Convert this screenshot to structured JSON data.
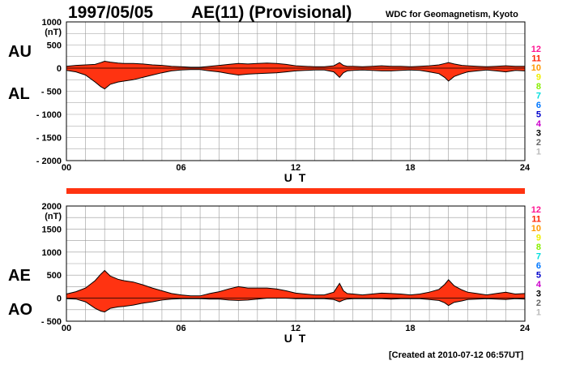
{
  "header": {
    "date": "1997/05/05",
    "title": "AE(11) (Provisional)",
    "org": "WDC for Geomagnetism, Kyoto"
  },
  "footer": {
    "created": "[Created at 2010-07-12 06:57UT]"
  },
  "colors": {
    "fill": "#ff3311",
    "outline": "#000000",
    "grid": "#999999",
    "bar": "#ff3311"
  },
  "station_legend": [
    {
      "label": "12",
      "color": "#ff1493"
    },
    {
      "label": "11",
      "color": "#ff2200"
    },
    {
      "label": "10",
      "color": "#ff9900"
    },
    {
      "label": "9",
      "color": "#eeee00"
    },
    {
      "label": "8",
      "color": "#88ee00"
    },
    {
      "label": "7",
      "color": "#00dddd"
    },
    {
      "label": "6",
      "color": "#0077ff"
    },
    {
      "label": "5",
      "color": "#0000cc"
    },
    {
      "label": "4",
      "color": "#cc00cc"
    },
    {
      "label": "3",
      "color": "#000000"
    },
    {
      "label": "2",
      "color": "#666666"
    },
    {
      "label": "1",
      "color": "#bbbbbb"
    }
  ],
  "chart_data": [
    {
      "type": "area",
      "series_labels": [
        "AU",
        "AL"
      ],
      "ylabel": "(nT)",
      "xlabel": "U T",
      "xlim": [
        0,
        24
      ],
      "ylim": [
        -2000,
        1000
      ],
      "xticks": [
        {
          "v": 0,
          "label": "00"
        },
        {
          "v": 6,
          "label": "06"
        },
        {
          "v": 12,
          "label": "12"
        },
        {
          "v": 18,
          "label": "18"
        },
        {
          "v": 24,
          "label": "24"
        }
      ],
      "yticks": [
        {
          "v": 1000,
          "label": "1000"
        },
        {
          "v": 500,
          "label": "500"
        },
        {
          "v": 0,
          "label": "0"
        },
        {
          "v": -500,
          "label": "- 500"
        },
        {
          "v": -1000,
          "label": "- 1000"
        },
        {
          "v": -1500,
          "label": "- 1500"
        },
        {
          "v": -2000,
          "label": "- 2000"
        }
      ],
      "grid": true,
      "x": [
        0,
        0.5,
        1,
        1.5,
        1.8,
        2,
        2.3,
        2.7,
        3,
        3.5,
        4,
        4.5,
        5,
        5.5,
        6,
        6.5,
        7,
        7.5,
        8,
        8.5,
        9,
        9.5,
        10,
        10.5,
        11,
        11.5,
        12,
        12.5,
        13,
        13.5,
        14,
        14.3,
        14.5,
        14.7,
        15,
        15.5,
        16,
        16.5,
        17,
        17.5,
        18,
        18.5,
        19,
        19.5,
        19.8,
        20,
        20.3,
        20.7,
        21,
        21.5,
        22,
        22.5,
        23,
        23.5,
        24
      ],
      "upper": [
        40,
        60,
        70,
        80,
        120,
        150,
        130,
        110,
        100,
        100,
        90,
        70,
        60,
        40,
        30,
        20,
        20,
        40,
        60,
        80,
        100,
        90,
        100,
        110,
        100,
        80,
        50,
        40,
        30,
        30,
        50,
        120,
        60,
        40,
        40,
        30,
        40,
        50,
        40,
        40,
        30,
        40,
        50,
        70,
        100,
        120,
        90,
        60,
        50,
        40,
        30,
        40,
        50,
        40,
        40
      ],
      "lower": [
        -50,
        -80,
        -150,
        -300,
        -400,
        -450,
        -350,
        -300,
        -280,
        -250,
        -200,
        -150,
        -100,
        -60,
        -40,
        -30,
        -30,
        -60,
        -80,
        -120,
        -150,
        -130,
        -120,
        -110,
        -100,
        -80,
        -60,
        -50,
        -40,
        -40,
        -80,
        -200,
        -100,
        -60,
        -50,
        -40,
        -50,
        -60,
        -60,
        -50,
        -40,
        -50,
        -80,
        -120,
        -200,
        -280,
        -180,
        -120,
        -80,
        -60,
        -40,
        -60,
        -80,
        -50,
        -60
      ]
    },
    {
      "type": "area",
      "series_labels": [
        "AE",
        "AO"
      ],
      "ylabel": "(nT)",
      "xlabel": "U T",
      "xlim": [
        0,
        24
      ],
      "ylim": [
        -500,
        2000
      ],
      "xticks": [
        {
          "v": 0,
          "label": "00"
        },
        {
          "v": 6,
          "label": "06"
        },
        {
          "v": 12,
          "label": "12"
        },
        {
          "v": 18,
          "label": "18"
        },
        {
          "v": 24,
          "label": "24"
        }
      ],
      "yticks": [
        {
          "v": 2000,
          "label": "2000"
        },
        {
          "v": 1500,
          "label": "1500"
        },
        {
          "v": 1000,
          "label": "1000"
        },
        {
          "v": 500,
          "label": "500"
        },
        {
          "v": 0,
          "label": "0"
        },
        {
          "v": -500,
          "label": "- 500"
        }
      ],
      "grid": true,
      "x": [
        0,
        0.5,
        1,
        1.5,
        1.8,
        2,
        2.3,
        2.7,
        3,
        3.5,
        4,
        4.5,
        5,
        5.5,
        6,
        6.5,
        7,
        7.5,
        8,
        8.5,
        9,
        9.5,
        10,
        10.5,
        11,
        11.5,
        12,
        12.5,
        13,
        13.5,
        14,
        14.3,
        14.5,
        14.7,
        15,
        15.5,
        16,
        16.5,
        17,
        17.5,
        18,
        18.5,
        19,
        19.5,
        19.8,
        20,
        20.3,
        20.7,
        21,
        21.5,
        22,
        22.5,
        23,
        23.5,
        24
      ],
      "upper": [
        90,
        140,
        220,
        380,
        520,
        600,
        480,
        410,
        380,
        350,
        290,
        220,
        160,
        100,
        70,
        50,
        50,
        100,
        140,
        200,
        250,
        220,
        220,
        220,
        200,
        160,
        110,
        90,
        70,
        70,
        130,
        320,
        160,
        100,
        90,
        70,
        90,
        110,
        100,
        90,
        70,
        90,
        130,
        190,
        300,
        400,
        270,
        180,
        130,
        100,
        70,
        100,
        130,
        90,
        100
      ],
      "lower": [
        -10,
        -20,
        -80,
        -220,
        -280,
        -300,
        -220,
        -190,
        -180,
        -150,
        -110,
        -80,
        -40,
        -20,
        -10,
        -10,
        -10,
        -20,
        -20,
        -40,
        -50,
        -40,
        -20,
        0,
        0,
        0,
        -10,
        -10,
        -10,
        -10,
        -30,
        -80,
        -40,
        -20,
        -10,
        -10,
        -10,
        -10,
        -20,
        -10,
        -10,
        -10,
        -30,
        -50,
        -100,
        -160,
        -90,
        -60,
        -30,
        -20,
        -10,
        -20,
        -30,
        -10,
        -20
      ]
    }
  ]
}
